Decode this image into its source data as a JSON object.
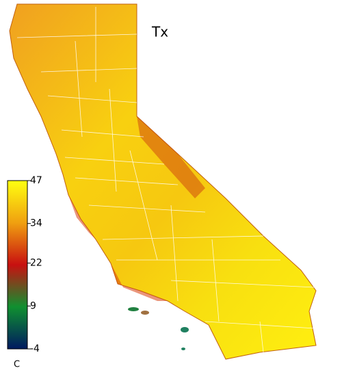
{
  "map": {
    "title": "Tx",
    "colorbar": {
      "range": [
        -4,
        47
      ],
      "ticks": [
        47,
        34,
        22,
        9,
        -4
      ],
      "unit": "C",
      "colors": [
        "#ffff10",
        "#f0a010",
        "#c81010",
        "#109030",
        "#001a60"
      ]
    }
  }
}
